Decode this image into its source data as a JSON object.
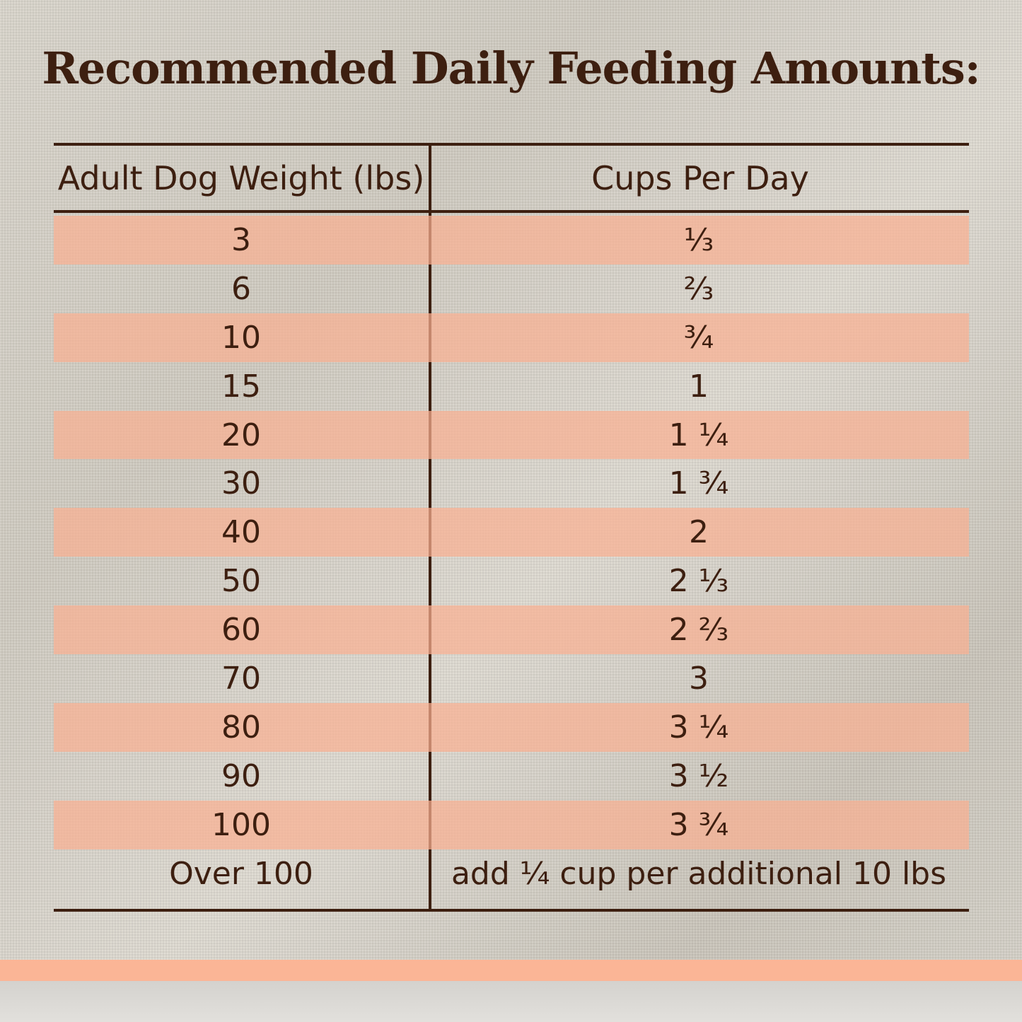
{
  "title": "Recommended Daily Feeding Amounts:",
  "table": {
    "headers": {
      "weight": "Adult Dog Weight (lbs)",
      "cups": "Cups Per Day"
    },
    "rows": [
      {
        "weight": "3",
        "cups": "⅓",
        "banded": true
      },
      {
        "weight": "6",
        "cups": "⅔",
        "banded": false
      },
      {
        "weight": "10",
        "cups": "¾",
        "banded": true
      },
      {
        "weight": "15",
        "cups": "1",
        "banded": false
      },
      {
        "weight": "20",
        "cups": "1 ¼",
        "banded": true
      },
      {
        "weight": "30",
        "cups": "1 ¾",
        "banded": false
      },
      {
        "weight": "40",
        "cups": "2",
        "banded": true
      },
      {
        "weight": "50",
        "cups": "2 ⅓",
        "banded": false
      },
      {
        "weight": "60",
        "cups": "2 ⅔",
        "banded": true
      },
      {
        "weight": "70",
        "cups": "3",
        "banded": false
      },
      {
        "weight": "80",
        "cups": "3 ¼",
        "banded": true
      },
      {
        "weight": "90",
        "cups": "3 ½",
        "banded": false
      },
      {
        "weight": "100",
        "cups": "3 ¾",
        "banded": true
      },
      {
        "weight": "Over 100",
        "cups": "add ¼ cup per additional 10 lbs",
        "banded": false
      }
    ]
  },
  "colors": {
    "text": "#3d1f10",
    "band": "#fab092",
    "background": "#d6d2c9"
  }
}
